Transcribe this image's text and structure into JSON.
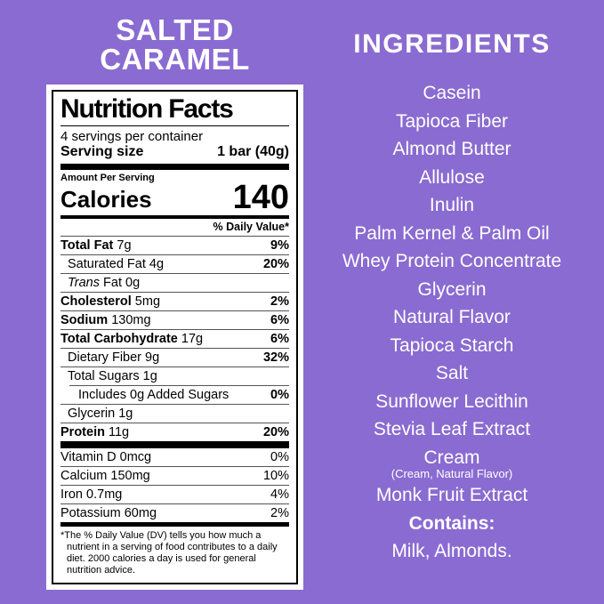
{
  "colors": {
    "background_purple": "#8A6BD1",
    "title_text": "#FFFFFF",
    "label_background": "#FFFFFF",
    "label_text": "#000000"
  },
  "product": {
    "title_line1": "SALTED",
    "title_line2": "CARAMEL"
  },
  "nutrition": {
    "title": "Nutrition Facts",
    "servings_per_container": "4 servings per container",
    "serving_size_label": "Serving size",
    "serving_size_value": "1 bar (40g)",
    "amount_per_serving": "Amount Per Serving",
    "calories_label": "Calories",
    "calories_value": "140",
    "daily_value_header": "% Daily Value*",
    "rows": [
      {
        "name": "Total Fat",
        "amount": "7g",
        "dv": "9%"
      },
      {
        "name": "Saturated Fat",
        "amount": "4g",
        "dv": "20%"
      },
      {
        "name": "Trans",
        "amount": "Fat 0g",
        "dv": ""
      },
      {
        "name": "Cholesterol",
        "amount": "5mg",
        "dv": "2%"
      },
      {
        "name": "Sodium",
        "amount": "130mg",
        "dv": "6%"
      },
      {
        "name": "Total Carbohydrate",
        "amount": "17g",
        "dv": "6%"
      },
      {
        "name": "Dietary Fiber",
        "amount": "9g",
        "dv": "32%"
      },
      {
        "name": "Total Sugars",
        "amount": "1g",
        "dv": ""
      },
      {
        "name": "Includes 0g Added Sugars",
        "amount": "",
        "dv": "0%"
      },
      {
        "name": "Glycerin",
        "amount": "1g",
        "dv": ""
      },
      {
        "name": "Protein",
        "amount": "11g",
        "dv": "20%"
      }
    ],
    "micronutrients": [
      {
        "name": "Vitamin D",
        "amount": "0mcg",
        "dv": "0%"
      },
      {
        "name": "Calcium",
        "amount": "150mg",
        "dv": "10%"
      },
      {
        "name": "Iron",
        "amount": "0.7mg",
        "dv": "4%"
      },
      {
        "name": "Potassium",
        "amount": "60mg",
        "dv": "2%"
      }
    ],
    "footnote": "*The % Daily Value (DV) tells you how much a nutrient in a serving of food contributes to a daily diet. 2000 calories a day is used for general nutrition advice."
  },
  "ingredients": {
    "title": "INGREDIENTS",
    "items": [
      "Casein",
      "Tapioca Fiber",
      "Almond Butter",
      "Allulose",
      "Inulin",
      "Palm Kernel & Palm Oil",
      "Whey Protein Concentrate",
      "Glycerin",
      "Natural Flavor",
      "Tapioca Starch",
      "Salt",
      "Sunflower Lecithin",
      "Stevia Leaf Extract",
      "Cream",
      "Monk Fruit Extract"
    ],
    "cream_subnote": "(Cream, Natural Flavor)",
    "contains_label": "Contains:",
    "contains_value": "Milk, Almonds."
  }
}
